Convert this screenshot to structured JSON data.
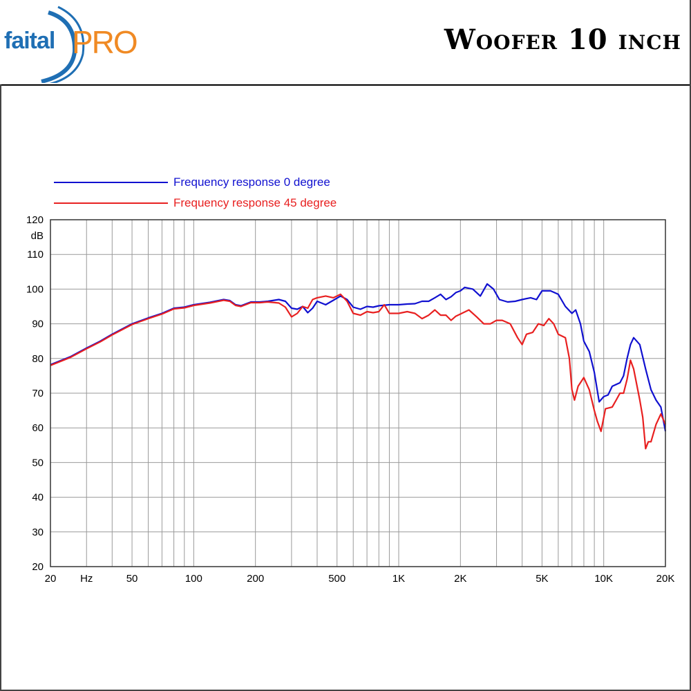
{
  "header": {
    "logo_brand": "faital",
    "logo_pro": "PRO",
    "title": "Woofer 10 inch"
  },
  "colors": {
    "series_0": "#1010d0",
    "series_45": "#e82020",
    "logo_blue": "#1f6fb4",
    "logo_orange": "#f08a24",
    "grid": "#999999"
  },
  "chart_data": {
    "type": "line",
    "x_scale": "log",
    "xlim": [
      20,
      20000
    ],
    "ylim": [
      20,
      120
    ],
    "ylabel": "dB",
    "xlabel": "",
    "grid": true,
    "legend_position": "top-left",
    "x_ticks": [
      {
        "value": 20,
        "label": "20"
      },
      {
        "value": 30,
        "label": "Hz"
      },
      {
        "value": 50,
        "label": "50"
      },
      {
        "value": 100,
        "label": "100"
      },
      {
        "value": 200,
        "label": "200"
      },
      {
        "value": 500,
        "label": "500"
      },
      {
        "value": 1000,
        "label": "1K"
      },
      {
        "value": 2000,
        "label": "2K"
      },
      {
        "value": 5000,
        "label": "5K"
      },
      {
        "value": 10000,
        "label": "10K"
      },
      {
        "value": 20000,
        "label": "20K"
      }
    ],
    "y_ticks": [
      120,
      110,
      100,
      90,
      80,
      70,
      60,
      50,
      40,
      30,
      20
    ],
    "series": [
      {
        "name": "Frequency response 0 degree",
        "color": "#1010d0",
        "points": [
          [
            20,
            78.2
          ],
          [
            25,
            80.5
          ],
          [
            30,
            83
          ],
          [
            35,
            85
          ],
          [
            40,
            87
          ],
          [
            50,
            90
          ],
          [
            60,
            91.7
          ],
          [
            70,
            93
          ],
          [
            80,
            94.5
          ],
          [
            90,
            94.8
          ],
          [
            100,
            95.5
          ],
          [
            120,
            96.2
          ],
          [
            140,
            97
          ],
          [
            150,
            96.7
          ],
          [
            160,
            95.5
          ],
          [
            170,
            95.2
          ],
          [
            190,
            96.3
          ],
          [
            210,
            96.3
          ],
          [
            230,
            96.5
          ],
          [
            260,
            97
          ],
          [
            280,
            96.5
          ],
          [
            300,
            94.5
          ],
          [
            320,
            94.2
          ],
          [
            340,
            95
          ],
          [
            360,
            93.2
          ],
          [
            380,
            94.5
          ],
          [
            400,
            96.5
          ],
          [
            440,
            95.5
          ],
          [
            480,
            96.8
          ],
          [
            520,
            98
          ],
          [
            560,
            97
          ],
          [
            600,
            94.8
          ],
          [
            650,
            94.2
          ],
          [
            700,
            95
          ],
          [
            750,
            94.8
          ],
          [
            800,
            95.2
          ],
          [
            900,
            95.5
          ],
          [
            1000,
            95.5
          ],
          [
            1100,
            95.7
          ],
          [
            1200,
            95.8
          ],
          [
            1300,
            96.5
          ],
          [
            1400,
            96.5
          ],
          [
            1500,
            97.5
          ],
          [
            1600,
            98.5
          ],
          [
            1700,
            97
          ],
          [
            1800,
            97.8
          ],
          [
            1900,
            99
          ],
          [
            2000,
            99.5
          ],
          [
            2100,
            100.5
          ],
          [
            2300,
            100
          ],
          [
            2500,
            98
          ],
          [
            2700,
            101.5
          ],
          [
            2900,
            100
          ],
          [
            3100,
            97
          ],
          [
            3400,
            96.3
          ],
          [
            3700,
            96.5
          ],
          [
            4000,
            97
          ],
          [
            4400,
            97.5
          ],
          [
            4700,
            97
          ],
          [
            5000,
            99.5
          ],
          [
            5500,
            99.5
          ],
          [
            6000,
            98.5
          ],
          [
            6500,
            95
          ],
          [
            7000,
            93
          ],
          [
            7300,
            94
          ],
          [
            7700,
            90
          ],
          [
            8000,
            85
          ],
          [
            8500,
            82
          ],
          [
            9000,
            76
          ],
          [
            9500,
            67.5
          ],
          [
            10000,
            69
          ],
          [
            10500,
            69.5
          ],
          [
            11000,
            72
          ],
          [
            12000,
            73
          ],
          [
            12500,
            75
          ],
          [
            13000,
            80
          ],
          [
            13500,
            84
          ],
          [
            14000,
            86
          ],
          [
            15000,
            84
          ],
          [
            16000,
            77
          ],
          [
            17000,
            71
          ],
          [
            18000,
            68
          ],
          [
            19000,
            66
          ],
          [
            20000,
            59
          ]
        ]
      },
      {
        "name": "Frequency response 45 degree",
        "color": "#e82020",
        "points": [
          [
            20,
            78
          ],
          [
            25,
            80.3
          ],
          [
            30,
            82.8
          ],
          [
            35,
            84.8
          ],
          [
            40,
            86.8
          ],
          [
            50,
            89.8
          ],
          [
            60,
            91.5
          ],
          [
            70,
            92.8
          ],
          [
            80,
            94.3
          ],
          [
            90,
            94.6
          ],
          [
            100,
            95.3
          ],
          [
            120,
            96
          ],
          [
            140,
            96.8
          ],
          [
            150,
            96.5
          ],
          [
            160,
            95.3
          ],
          [
            170,
            95
          ],
          [
            190,
            96.1
          ],
          [
            210,
            96.1
          ],
          [
            230,
            96.3
          ],
          [
            260,
            96
          ],
          [
            280,
            94.8
          ],
          [
            300,
            92
          ],
          [
            320,
            93
          ],
          [
            340,
            95
          ],
          [
            360,
            94.5
          ],
          [
            380,
            97
          ],
          [
            400,
            97.5
          ],
          [
            440,
            98
          ],
          [
            480,
            97.5
          ],
          [
            520,
            98.5
          ],
          [
            560,
            96.5
          ],
          [
            600,
            93
          ],
          [
            650,
            92.5
          ],
          [
            700,
            93.5
          ],
          [
            750,
            93.2
          ],
          [
            800,
            93.5
          ],
          [
            850,
            95.5
          ],
          [
            900,
            93
          ],
          [
            1000,
            93
          ],
          [
            1100,
            93.5
          ],
          [
            1200,
            93
          ],
          [
            1300,
            91.5
          ],
          [
            1400,
            92.5
          ],
          [
            1500,
            94
          ],
          [
            1600,
            92.5
          ],
          [
            1700,
            92.5
          ],
          [
            1800,
            91
          ],
          [
            1900,
            92.2
          ],
          [
            2000,
            92.8
          ],
          [
            2200,
            94
          ],
          [
            2400,
            92
          ],
          [
            2600,
            90
          ],
          [
            2800,
            90
          ],
          [
            3000,
            91
          ],
          [
            3200,
            91
          ],
          [
            3500,
            90
          ],
          [
            3800,
            86
          ],
          [
            4000,
            84
          ],
          [
            4200,
            87
          ],
          [
            4500,
            87.5
          ],
          [
            4800,
            90
          ],
          [
            5100,
            89.5
          ],
          [
            5400,
            91.5
          ],
          [
            5700,
            90
          ],
          [
            6000,
            87
          ],
          [
            6500,
            86
          ],
          [
            6800,
            80
          ],
          [
            7000,
            71
          ],
          [
            7200,
            68
          ],
          [
            7500,
            72
          ],
          [
            8000,
            74.5
          ],
          [
            8500,
            71
          ],
          [
            9000,
            65
          ],
          [
            9300,
            62
          ],
          [
            9700,
            59
          ],
          [
            10200,
            65.5
          ],
          [
            11000,
            66
          ],
          [
            11500,
            68
          ],
          [
            12000,
            70
          ],
          [
            12500,
            70
          ],
          [
            13000,
            74
          ],
          [
            13500,
            79.5
          ],
          [
            14000,
            77
          ],
          [
            15000,
            68
          ],
          [
            15500,
            63
          ],
          [
            16000,
            54
          ],
          [
            16500,
            56
          ],
          [
            17000,
            56
          ],
          [
            18000,
            61
          ],
          [
            19000,
            64
          ],
          [
            20000,
            61
          ]
        ]
      }
    ]
  }
}
